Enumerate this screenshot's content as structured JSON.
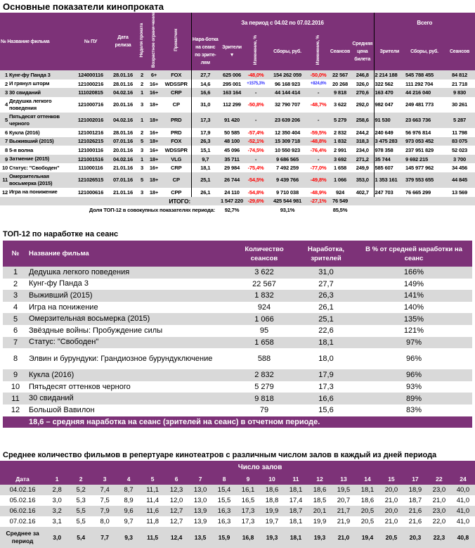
{
  "colors": {
    "header_bg": "#7d3278",
    "row_alt": "#d9d9d9",
    "negative": "#ff0000",
    "positive": "#3030ff"
  },
  "main_table": {
    "title": "Основные показатели кинопроката",
    "period_header": "За период с 04.02 по 07.02.2016",
    "total_header": "Всего",
    "columns": [
      "№ Название фильма",
      "№ ПУ",
      "Дата релиза",
      "Неделя проката",
      "Возрастное ограни-чение",
      "Прокатчик",
      "Нара-ботка на сеанс по зрите-лям",
      "Зрители ▼",
      "Изменение, %",
      "Сборы, руб.",
      "Изменение, %",
      "Сеансов",
      "Средняя цена билета",
      "Зрители",
      "Сборы, руб.",
      "Сеансов"
    ],
    "rows": [
      [
        "1",
        "Кунг-фу Панда 3",
        "124000116",
        "28.01.16",
        "2",
        "6+",
        "FOX",
        "27,7",
        "625 006",
        "-48,0%",
        "154 262 059",
        "-50,0%",
        "22 567",
        "246,8",
        "2 214 188",
        "545 788 455",
        "84 812"
      ],
      [
        "2",
        "И грянул шторм",
        "121000216",
        "28.01.16",
        "2",
        "16+",
        "WDSSPR",
        "14,6",
        "295 001",
        "+1575,3%",
        "96 168 923",
        "+824,6%",
        "20 268",
        "326,0",
        "322 562",
        "111 292 704",
        "21 718"
      ],
      [
        "3",
        "30 свиданий",
        "111020815",
        "04.02.16",
        "1",
        "16+",
        "CRP",
        "16,6",
        "163 164",
        "-",
        "44 144 414",
        "-",
        "9 818",
        "270,6",
        "163 470",
        "44 216 040",
        "9 830"
      ],
      [
        "4",
        "Дедушка легкого поведения",
        "121000716",
        "20.01.16",
        "3",
        "18+",
        "CP",
        "31,0",
        "112 299",
        "-50,8%",
        "32 790 707",
        "-48,7%",
        "3 622",
        "292,0",
        "982 047",
        "249 481 773",
        "30 261"
      ],
      [
        "5",
        "Пятьдесят оттенков черного",
        "121002016",
        "04.02.16",
        "1",
        "18+",
        "PRD",
        "17,3",
        "91 420",
        "-",
        "23 639 206",
        "-",
        "5 279",
        "258,6",
        "91 530",
        "23 663 736",
        "5 287"
      ],
      [
        "6",
        "Кукла (2016)",
        "121001216",
        "28.01.16",
        "2",
        "16+",
        "PRD",
        "17,9",
        "50 585",
        "-57,4%",
        "12 350 404",
        "-59,5%",
        "2 832",
        "244,2",
        "240 649",
        "56 976 814",
        "11 798"
      ],
      [
        "7",
        "Выживший (2015)",
        "121026215",
        "07.01.16",
        "5",
        "18+",
        "FOX",
        "26,3",
        "48 100",
        "-52,1%",
        "15 309 718",
        "-48,8%",
        "1 832",
        "318,3",
        "3 475 283",
        "973 053 452",
        "83 075"
      ],
      [
        "8",
        "5-я волна",
        "121000116",
        "20.01.16",
        "3",
        "16+",
        "WDSSPR",
        "15,1",
        "45 096",
        "-74,5%",
        "10 550 923",
        "-76,4%",
        "2 991",
        "234,0",
        "978 358",
        "237 951 829",
        "52 023"
      ],
      [
        "9",
        "Затмение (2015)",
        "121001516",
        "04.02.16",
        "1",
        "18+",
        "VLG",
        "9,7",
        "35 711",
        "-",
        "9 686 565",
        "-",
        "3 692",
        "271,2",
        "35 744",
        "9 692 215",
        "3 700"
      ],
      [
        "10",
        "Статус: \"Свободен\"",
        "111000116",
        "21.01.16",
        "3",
        "16+",
        "CRP",
        "18,1",
        "29 984",
        "-75,4%",
        "7 492 259",
        "-77,0%",
        "1 658",
        "249,9",
        "585 607",
        "145 977 962",
        "34 456"
      ],
      [
        "11",
        "Омерзительная восьмерка (2015)",
        "121026515",
        "07.01.16",
        "5",
        "18+",
        "CP",
        "25,1",
        "26 744",
        "-54,5%",
        "9 439 766",
        "-49,8%",
        "1 066",
        "353,0",
        "1 353 161",
        "379 553 655",
        "44 845"
      ],
      [
        "12",
        "Игра на понижение",
        "121000616",
        "21.01.16",
        "3",
        "18+",
        "CPP",
        "26,1",
        "24 110",
        "-54,8%",
        "9 710 038",
        "-48,9%",
        "924",
        "402,7",
        "247 703",
        "76 665 299",
        "13 569"
      ]
    ],
    "total": {
      "label": "ИТОГО:",
      "viewers": "1 547 220",
      "viewers_change": "-29,6%",
      "gross": "425 544 981",
      "gross_change": "-27,1%",
      "sessions": "76 549"
    },
    "share": {
      "label": "Доля ТОП-12 в совокупных показателях периода:",
      "viewers": "92,7%",
      "gross": "93,1%",
      "sessions": "85,5%"
    }
  },
  "top12": {
    "title": "ТОП-12 по наработке на сеанс",
    "columns": [
      "№",
      "Название фильма",
      "Количество сеансов",
      "Наработка, зрителей",
      "В % от средней наработки на сеанс"
    ],
    "rows": [
      [
        "1",
        "Дедушка легкого поведения",
        "3 622",
        "31,0",
        "166%"
      ],
      [
        "2",
        "Кунг-фу Панда 3",
        "22 567",
        "27,7",
        "149%"
      ],
      [
        "3",
        "Выживший (2015)",
        "1 832",
        "26,3",
        "141%"
      ],
      [
        "4",
        "Игра на понижение",
        "924",
        "26,1",
        "140%"
      ],
      [
        "5",
        "Омерзительная восьмерка (2015)",
        "1 066",
        "25,1",
        "135%"
      ],
      [
        "6",
        "Звёздные войны: Пробуждение силы",
        "95",
        "22,6",
        "121%"
      ],
      [
        "7",
        "Статус: \"Свободен\"",
        "1 658",
        "18,1",
        "97%"
      ],
      [
        "8",
        "Элвин и бурундуки: Грандиозное бурундуключение",
        "588",
        "18,0",
        "96%"
      ],
      [
        "9",
        "Кукла (2016)",
        "2 832",
        "17,9",
        "96%"
      ],
      [
        "10",
        "Пятьдесят оттенков черного",
        "5 279",
        "17,3",
        "93%"
      ],
      [
        "11",
        "30 свиданий",
        "9 818",
        "16,6",
        "89%"
      ],
      [
        "12",
        "Большой Вавилон",
        "79",
        "15,6",
        "83%"
      ]
    ],
    "footer": "18,6 – средняя наработка на сеанс (зрителей на сеанс) в отчетном периоде."
  },
  "halls": {
    "title": "Среднее количество фильмов в репертуаре кинотеатров с различным числом залов в каждый из дней периода",
    "group_header": "Число залов",
    "date_header": "Дата",
    "hall_counts": [
      "1",
      "2",
      "3",
      "4",
      "5",
      "6",
      "7",
      "8",
      "9",
      "10",
      "11",
      "12",
      "13",
      "14",
      "15",
      "17",
      "22",
      "24"
    ],
    "rows": [
      [
        "04.02.16",
        "2,8",
        "5,2",
        "7,4",
        "8,7",
        "11,1",
        "12,3",
        "13,0",
        "15,4",
        "16,1",
        "18,6",
        "18,1",
        "18,6",
        "19,5",
        "18,1",
        "20,0",
        "18,9",
        "23,0",
        "40,0"
      ],
      [
        "05.02.16",
        "3,0",
        "5,3",
        "7,5",
        "8,9",
        "11,4",
        "12,0",
        "13,0",
        "15,5",
        "16,5",
        "18,8",
        "17,4",
        "18,5",
        "20,7",
        "18,6",
        "21,0",
        "18,7",
        "21,0",
        "41,0"
      ],
      [
        "06.02.16",
        "3,2",
        "5,5",
        "7,9",
        "9,6",
        "11,6",
        "12,7",
        "13,9",
        "16,3",
        "17,3",
        "19,9",
        "18,7",
        "20,1",
        "21,7",
        "20,5",
        "20,0",
        "21,6",
        "23,0",
        "41,0"
      ],
      [
        "07.02.16",
        "3,1",
        "5,5",
        "8,0",
        "9,7",
        "11,8",
        "12,7",
        "13,9",
        "16,3",
        "17,3",
        "19,7",
        "18,1",
        "19,9",
        "21,9",
        "20,5",
        "21,0",
        "21,6",
        "22,0",
        "41,0"
      ],
      [
        "Среднее за период",
        "3,0",
        "5,4",
        "7,7",
        "9,3",
        "11,5",
        "12,4",
        "13,5",
        "15,9",
        "16,8",
        "19,3",
        "18,1",
        "19,3",
        "21,0",
        "19,4",
        "20,5",
        "20,3",
        "22,3",
        "40,8"
      ]
    ]
  }
}
